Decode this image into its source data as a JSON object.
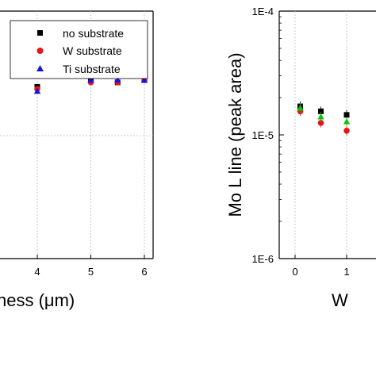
{
  "chart_data": [
    {
      "type": "scatter",
      "xlabel": "ness (μm)",
      "ylabel": "",
      "xlim": [
        0,
        6
      ],
      "x_ticks": [
        "4",
        "5",
        "6"
      ],
      "grid": "dashed vertical and horizontal",
      "legend_position": "top-right",
      "series": [
        {
          "name": "no substrate",
          "marker": "square",
          "color": "#000000",
          "points": [
            [
              4,
              1.02
            ],
            [
              5,
              1.05
            ],
            [
              5.5,
              1.04
            ],
            [
              6,
              1.05
            ]
          ]
        },
        {
          "name": "W substrate",
          "marker": "circle",
          "color": "#e8141b",
          "points": [
            [
              4,
              1.01
            ],
            [
              5,
              1.04
            ],
            [
              5.5,
              1.04
            ],
            [
              6,
              1.05
            ]
          ]
        },
        {
          "name": "Ti substrate",
          "marker": "triangle",
          "color": "#1414e0",
          "points": [
            [
              4,
              1.0
            ],
            [
              5,
              1.05
            ],
            [
              5.5,
              1.05
            ],
            [
              6,
              1.05
            ]
          ]
        }
      ]
    },
    {
      "type": "scatter",
      "ylabel": "Mo L line (peak area)",
      "xlabel": "W",
      "yscale": "log",
      "ylim": [
        1e-06,
        0.0001
      ],
      "y_ticks": [
        "1E-4",
        "1E-5",
        "1E-6"
      ],
      "x_ticks": [
        "0",
        "1"
      ],
      "xlim": [
        -0.2,
        2
      ],
      "grid": "dashed vertical",
      "series": [
        {
          "marker": "square",
          "color": "#000000",
          "points": [
            [
              0.1,
              1.7e-05
            ],
            [
              0.5,
              1.55e-05
            ],
            [
              1.0,
              1.45e-05
            ]
          ]
        },
        {
          "marker": "circle",
          "color": "#e8141b",
          "points": [
            [
              0.1,
              1.55e-05
            ],
            [
              0.5,
              1.25e-05
            ],
            [
              1.0,
              1.08e-05
            ]
          ]
        },
        {
          "marker": "triangle",
          "color": "#10c010",
          "points": [
            [
              0.1,
              1.65e-05
            ],
            [
              0.5,
              1.4e-05
            ],
            [
              1.0,
              1.28e-05
            ]
          ]
        }
      ]
    }
  ]
}
